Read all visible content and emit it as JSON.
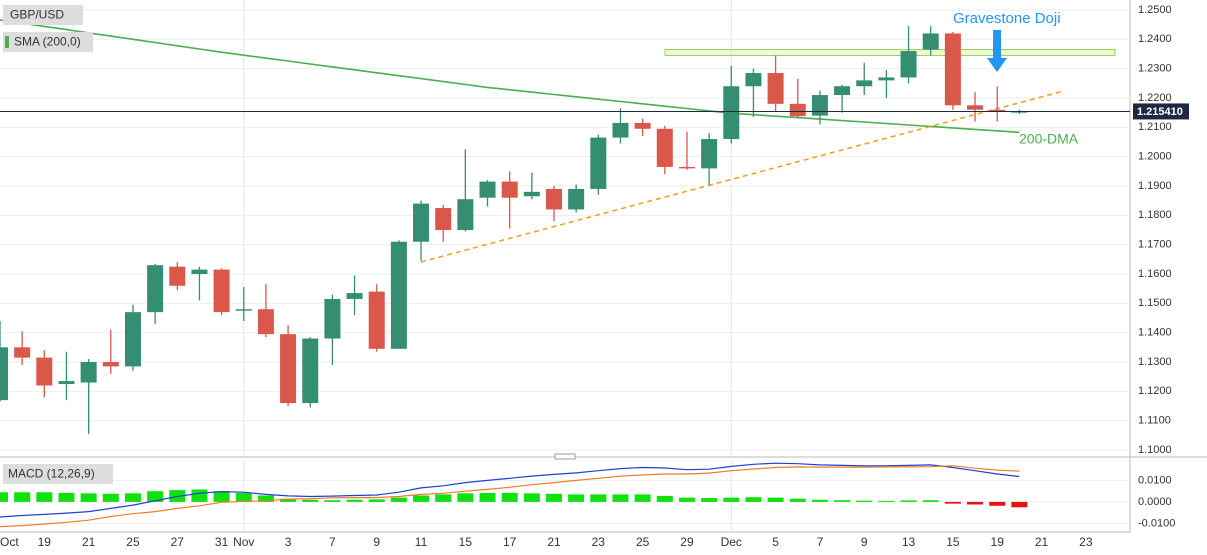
{
  "chart_data": [
    {
      "type": "candlestick",
      "title": "GBP/USD",
      "categories": [
        "Oct",
        null,
        "19",
        null,
        "21",
        null,
        "25",
        null,
        "27",
        null,
        "31",
        "Nov",
        null,
        "3",
        null,
        "7",
        null,
        "9",
        null,
        "11",
        null,
        "15",
        null,
        "17",
        null,
        "21",
        null,
        "23",
        null,
        "25",
        null,
        "29",
        null,
        "Dec",
        null,
        "5",
        null,
        "7",
        null,
        "9",
        null,
        "13",
        null,
        "15",
        null,
        "19",
        null,
        "21",
        null,
        "23"
      ],
      "open": [
        1.117,
        1.135,
        1.1315,
        1.1225,
        1.123,
        1.13,
        1.1285,
        1.147,
        1.1625,
        1.16,
        1.1615,
        1.1475,
        1.148,
        1.1395,
        1.116,
        1.138,
        1.1515,
        1.154,
        1.1345,
        1.171,
        1.1825,
        1.175,
        1.186,
        1.1915,
        1.1865,
        1.189,
        1.182,
        1.189,
        1.2065,
        1.2115,
        1.2095,
        1.1965,
        1.196,
        1.206,
        1.224,
        1.2285,
        1.218,
        1.214,
        1.221,
        1.224,
        1.226,
        1.227,
        1.2365,
        1.242,
        1.2175,
        1.216,
        1.215,
        null,
        null,
        null
      ],
      "high": [
        1.144,
        1.1405,
        1.134,
        1.1335,
        1.131,
        1.141,
        1.1495,
        1.1635,
        1.164,
        1.1625,
        1.162,
        1.1555,
        1.1565,
        1.1425,
        1.1385,
        1.153,
        1.1595,
        1.1565,
        1.1715,
        1.185,
        1.1835,
        1.2025,
        1.192,
        1.195,
        1.1945,
        1.19,
        1.1905,
        1.2075,
        1.2165,
        1.213,
        1.2105,
        1.2085,
        1.208,
        1.231,
        1.23,
        1.2345,
        1.2265,
        1.2225,
        1.2245,
        1.232,
        1.2295,
        1.2445,
        1.2445,
        1.2425,
        1.222,
        1.224,
        1.216,
        null,
        null,
        null
      ],
      "low": [
        1.1165,
        1.129,
        1.118,
        1.117,
        1.1055,
        1.126,
        1.127,
        1.143,
        1.1545,
        1.151,
        1.146,
        1.144,
        1.1385,
        1.115,
        1.1145,
        1.129,
        1.146,
        1.1335,
        1.1345,
        1.1645,
        1.171,
        1.1745,
        1.183,
        1.1755,
        1.1855,
        1.178,
        1.181,
        1.187,
        1.2045,
        1.207,
        1.194,
        1.1955,
        1.1905,
        1.2045,
        1.2135,
        1.2155,
        1.213,
        1.211,
        1.215,
        1.221,
        1.22,
        1.225,
        1.2345,
        1.216,
        1.212,
        1.212,
        1.2145,
        null,
        null,
        null
      ],
      "close": [
        1.135,
        1.1315,
        1.122,
        1.1235,
        1.13,
        1.1285,
        1.147,
        1.163,
        1.156,
        1.1615,
        1.147,
        1.148,
        1.1395,
        1.116,
        1.138,
        1.1515,
        1.1535,
        1.1345,
        1.171,
        1.184,
        1.175,
        1.1855,
        1.1915,
        1.186,
        1.188,
        1.182,
        1.189,
        1.2065,
        1.2115,
        1.2095,
        1.1965,
        1.196,
        1.206,
        1.224,
        1.2285,
        1.218,
        1.2138,
        1.221,
        1.224,
        1.226,
        1.227,
        1.236,
        1.242,
        1.2175,
        1.216,
        1.2155,
        1.21541,
        null,
        null,
        null
      ],
      "up_color": "#358e72",
      "down_color": "#d9584a",
      "series": [
        {
          "name": "SMA (200,0)",
          "color": "#4cae4c",
          "values": [
            1.2466,
            1.2455,
            1.2444,
            1.2433,
            1.2422,
            1.2411,
            1.24,
            1.2389,
            1.2378,
            1.2367,
            1.2356,
            1.2346,
            1.2336,
            1.2326,
            1.2316,
            1.2306,
            1.2296,
            1.2286,
            1.2276,
            1.2266,
            1.2256,
            1.2246,
            1.2236,
            1.2228,
            1.222,
            1.2212,
            1.2204,
            1.2196,
            1.2188,
            1.218,
            1.2172,
            1.2164,
            1.2156,
            1.2148,
            1.2143,
            1.2138,
            1.2133,
            1.2128,
            1.2123,
            1.2118,
            1.2113,
            1.2108,
            1.2103,
            1.2098,
            1.2093,
            1.2088,
            1.2083,
            null,
            null,
            null
          ]
        }
      ],
      "annotations": {
        "pattern": "Gravestone Doji",
        "sma": "200-DMA"
      },
      "last_price": {
        "value": 1.21541,
        "label": "1.215410"
      },
      "resistance_zone": [
        1.2345,
        1.2365
      ],
      "support_line": [
        1.1641,
        1.2224
      ],
      "ylim": [
        1.0983,
        1.2534
      ],
      "yticks": [
        {
          "value": 1.25,
          "label": "1.2500"
        },
        {
          "value": 1.24,
          "label": "1.2400"
        },
        {
          "value": 1.23,
          "label": "1.2300"
        },
        {
          "value": 1.22,
          "label": "1.2200"
        },
        {
          "value": 1.21,
          "label": "1.2100"
        },
        {
          "value": 1.2,
          "label": "1.2000"
        },
        {
          "value": 1.19,
          "label": "1.1900"
        },
        {
          "value": 1.18,
          "label": "1.1800"
        },
        {
          "value": 1.17,
          "label": "1.1700"
        },
        {
          "value": 1.16,
          "label": "1.1600"
        },
        {
          "value": 1.15,
          "label": "1.1500"
        },
        {
          "value": 1.14,
          "label": "1.1400"
        },
        {
          "value": 1.13,
          "label": "1.1300"
        },
        {
          "value": 1.12,
          "label": "1.1200"
        },
        {
          "value": 1.11,
          "label": "1.1100"
        },
        {
          "value": 1.1,
          "label": "1.1000"
        }
      ],
      "grid": true
    },
    {
      "type": "macd",
      "title": "MACD (12,26,9)",
      "histogram": [
        0.0045,
        0.0045,
        0.0045,
        0.0042,
        0.004,
        0.0038,
        0.004,
        0.005,
        0.0055,
        0.0058,
        0.005,
        0.0042,
        0.003,
        0.0015,
        0.001,
        0.0008,
        0.001,
        0.0012,
        0.002,
        0.003,
        0.0035,
        0.004,
        0.0042,
        0.0042,
        0.004,
        0.0038,
        0.0035,
        0.0035,
        0.0035,
        0.0035,
        0.0028,
        0.002,
        0.0018,
        0.002,
        0.0022,
        0.002,
        0.0015,
        0.001,
        0.0008,
        0.0006,
        0.0005,
        0.0007,
        0.0008,
        -0.0008,
        -0.0012,
        -0.0018,
        -0.0025,
        null,
        null,
        null
      ],
      "up_color": "#11e011",
      "down_color": "#e81010",
      "series": [
        {
          "color": "#1f3fd6",
          "values": [
            -0.007,
            -0.0063,
            -0.0058,
            -0.0052,
            -0.0045,
            -0.003,
            -0.0015,
            0.0005,
            0.0025,
            0.004,
            0.0048,
            0.0045,
            0.0035,
            0.0028,
            0.0025,
            0.0027,
            0.003,
            0.0032,
            0.0045,
            0.0065,
            0.0075,
            0.009,
            0.01,
            0.011,
            0.012,
            0.0128,
            0.0135,
            0.0145,
            0.0155,
            0.016,
            0.0158,
            0.015,
            0.0152,
            0.0165,
            0.0175,
            0.018,
            0.0178,
            0.0172,
            0.017,
            0.0168,
            0.0168,
            0.017,
            0.0172,
            0.016,
            0.0145,
            0.013,
            0.0118,
            null,
            null,
            null
          ]
        },
        {
          "color": "#ef7b2a",
          "values": [
            -0.0115,
            -0.011,
            -0.0103,
            -0.0095,
            -0.0085,
            -0.0068,
            -0.0055,
            -0.0045,
            -0.003,
            -0.0018,
            -0.0002,
            0.0003,
            0.0005,
            0.0013,
            0.0015,
            0.0019,
            0.002,
            0.002,
            0.0025,
            0.0035,
            0.004,
            0.005,
            0.0058,
            0.0068,
            0.008,
            0.009,
            0.01,
            0.011,
            0.012,
            0.0125,
            0.013,
            0.013,
            0.0134,
            0.0145,
            0.0153,
            0.016,
            0.0163,
            0.0162,
            0.0162,
            0.0162,
            0.0163,
            0.0163,
            0.0164,
            0.0168,
            0.0157,
            0.0148,
            0.0143,
            null,
            null,
            null
          ]
        }
      ],
      "ylim": [
        -0.014,
        0.0195
      ],
      "yticks": [
        {
          "value": 0.01,
          "label": "0.0100"
        },
        {
          "value": 0,
          "label": "0.0000"
        },
        {
          "value": -0.01,
          "label": "-0.0100"
        }
      ],
      "grid": true
    }
  ]
}
